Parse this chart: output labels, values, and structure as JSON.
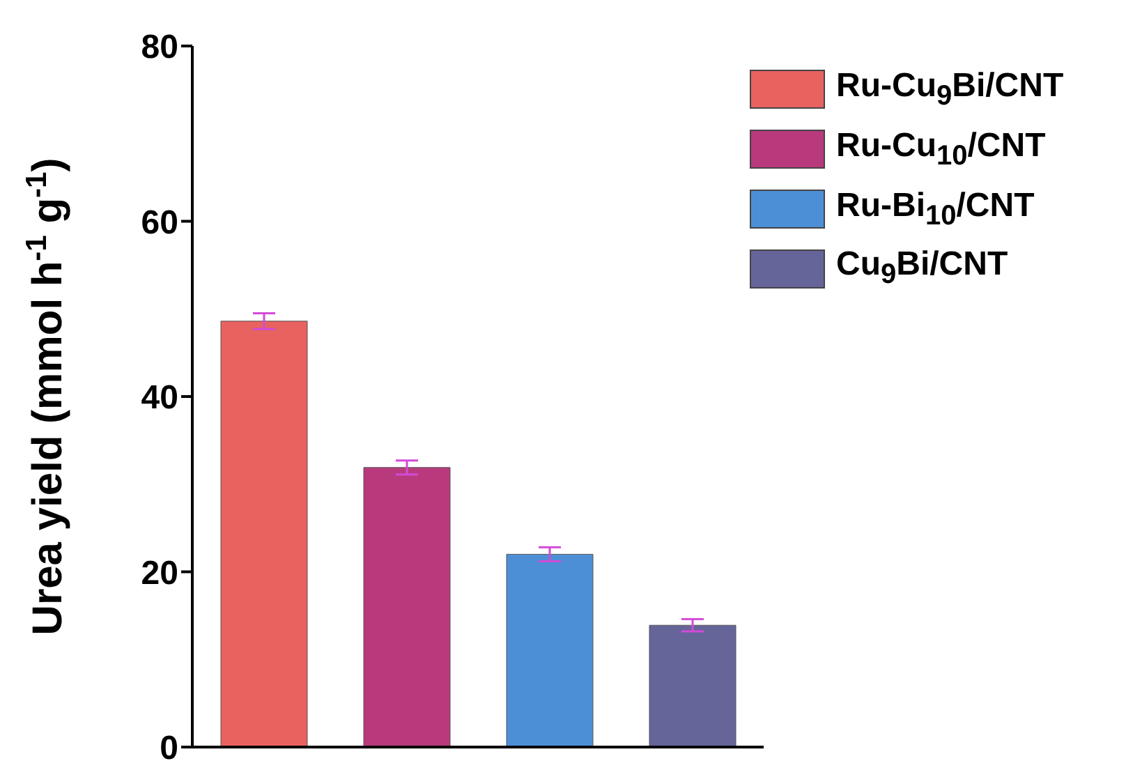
{
  "chart_data": {
    "type": "bar",
    "ylabel": "Urea yield (mmol h$^{-1}$ g$^{-1}$)",
    "categories": [
      null,
      null,
      null,
      null
    ],
    "series": [
      {
        "name": "Ru-Cu$_{9}$Bi/CNT",
        "color": "#e8625f",
        "values": [
          48.6,
          null,
          null,
          null
        ],
        "errors": [
          0.9,
          null,
          null,
          null
        ]
      },
      {
        "name": "Ru-Cu$_{10}$/CNT",
        "color": "#b83a7c",
        "values": [
          null,
          31.9,
          null,
          null
        ],
        "errors": [
          null,
          0.8,
          null,
          null
        ]
      },
      {
        "name": "Ru-Bi$_{10}$/CNT",
        "color": "#4d8fd6",
        "values": [
          null,
          null,
          22.0,
          null
        ],
        "errors": [
          null,
          null,
          0.8,
          null
        ]
      },
      {
        "name": "Cu$_{9}$Bi/CNT",
        "color": "#65659a",
        "values": [
          null,
          null,
          null,
          13.9
        ],
        "errors": [
          null,
          null,
          null,
          0.7
        ]
      }
    ],
    "ylim": [
      0,
      80
    ],
    "yticks": [
      0,
      20,
      40,
      60,
      80
    ],
    "legend": "top right"
  }
}
